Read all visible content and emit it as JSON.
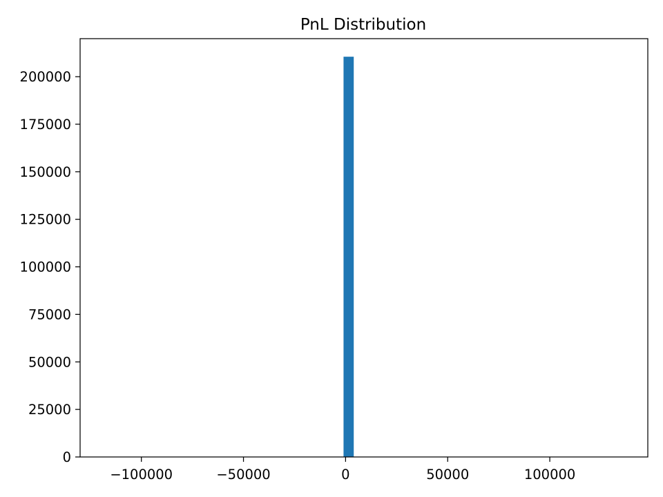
{
  "chart_data": {
    "type": "bar",
    "title": "PnL Distribution",
    "xlabel": "",
    "ylabel": "",
    "xlim": [
      -130000,
      148000
    ],
    "ylim": [
      0,
      220000
    ],
    "x_ticks": [
      {
        "value": -100000,
        "label": "−100000"
      },
      {
        "value": -50000,
        "label": "−50000"
      },
      {
        "value": 0,
        "label": "0"
      },
      {
        "value": 50000,
        "label": "50000"
      },
      {
        "value": 100000,
        "label": "100000"
      }
    ],
    "y_ticks": [
      {
        "value": 0,
        "label": "0"
      },
      {
        "value": 25000,
        "label": "25000"
      },
      {
        "value": 50000,
        "label": "50000"
      },
      {
        "value": 75000,
        "label": "75000"
      },
      {
        "value": 100000,
        "label": "100000"
      },
      {
        "value": 125000,
        "label": "125000"
      },
      {
        "value": 150000,
        "label": "150000"
      },
      {
        "value": 175000,
        "label": "175000"
      },
      {
        "value": 200000,
        "label": "200000"
      }
    ],
    "bins": [
      {
        "start": -1000,
        "end": 4000,
        "count": 210500
      }
    ],
    "grid": false,
    "legend": "none",
    "bar_color": "#1f77b4"
  }
}
